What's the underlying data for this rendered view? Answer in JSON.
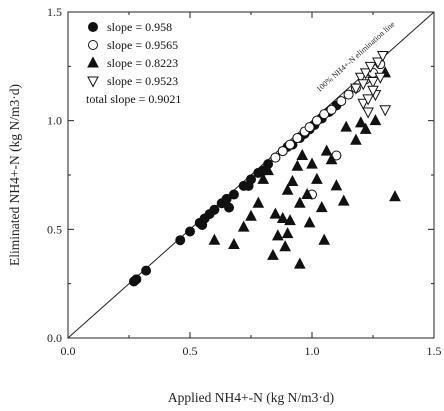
{
  "chart_data": {
    "type": "scatter",
    "xlabel": "Applied NH4+-N (kg N/m3·d)",
    "ylabel": "Eliminated NH4+-N (kg N/m3·d)",
    "xlim": [
      0.0,
      1.5
    ],
    "ylim": [
      0.0,
      1.5
    ],
    "xticks": [
      "0.0",
      "0.5",
      "1.0",
      "1.5"
    ],
    "yticks": [
      "0.0",
      "0.5",
      "1.0",
      "1.5"
    ],
    "grid": false,
    "legend_position": "top-left",
    "reference_line": {
      "label": "100% NH4+-N elimination line",
      "x": [
        0.0,
        1.5
      ],
      "y": [
        0.0,
        1.5
      ]
    },
    "total_slope_label": "total slope = 0.9021",
    "series": [
      {
        "name": "slope = 0.958",
        "marker": "filled-circle",
        "x": [
          0.27,
          0.28,
          0.32,
          0.46,
          0.5,
          0.54,
          0.56,
          0.58,
          0.6,
          0.63,
          0.65,
          0.68,
          0.72,
          0.75,
          0.78,
          0.8,
          0.82,
          0.85,
          0.88,
          0.9,
          0.92,
          0.95,
          0.97,
          0.99,
          1.01,
          1.04,
          1.07,
          1.1,
          0.55,
          0.66,
          0.74
        ],
        "y": [
          0.26,
          0.27,
          0.31,
          0.45,
          0.49,
          0.53,
          0.55,
          0.57,
          0.59,
          0.62,
          0.64,
          0.66,
          0.7,
          0.73,
          0.76,
          0.77,
          0.8,
          0.83,
          0.86,
          0.88,
          0.89,
          0.92,
          0.94,
          0.96,
          0.98,
          1.01,
          1.04,
          1.07,
          0.52,
          0.6,
          0.7
        ]
      },
      {
        "name": "slope = 0.9565",
        "marker": "open-circle",
        "x": [
          0.85,
          0.88,
          0.91,
          0.94,
          0.97,
          0.99,
          1.02,
          1.05,
          1.08,
          1.12,
          1.15,
          1.18,
          1.22,
          1.25,
          1.28,
          1.0,
          1.1
        ],
        "y": [
          0.83,
          0.86,
          0.89,
          0.92,
          0.95,
          0.97,
          1.0,
          1.03,
          1.05,
          1.09,
          1.12,
          1.15,
          1.19,
          1.22,
          1.26,
          0.66,
          0.84
        ]
      },
      {
        "name": "slope = 0.8223",
        "marker": "filled-triangle",
        "x": [
          0.6,
          0.68,
          0.72,
          0.75,
          0.78,
          0.8,
          0.82,
          0.84,
          0.85,
          0.86,
          0.88,
          0.89,
          0.9,
          0.91,
          0.92,
          0.94,
          0.95,
          0.96,
          0.98,
          1.0,
          1.02,
          1.04,
          1.06,
          1.08,
          1.1,
          1.14,
          1.18,
          1.22,
          1.26,
          1.3,
          1.34,
          0.95,
          0.99,
          1.05,
          1.13,
          1.2,
          0.9
        ],
        "y": [
          0.45,
          0.43,
          0.51,
          0.56,
          0.62,
          0.73,
          0.77,
          0.38,
          0.57,
          0.47,
          0.55,
          0.42,
          0.68,
          0.54,
          0.72,
          0.79,
          0.62,
          0.84,
          0.66,
          0.8,
          0.73,
          0.6,
          0.86,
          0.82,
          0.7,
          0.97,
          0.91,
          0.96,
          1.0,
          1.22,
          0.65,
          0.34,
          0.53,
          0.45,
          0.63,
          0.99,
          0.48
        ]
      },
      {
        "name": "slope = 0.9523",
        "marker": "open-triangle-down",
        "x": [
          1.18,
          1.2,
          1.21,
          1.22,
          1.23,
          1.24,
          1.25,
          1.26,
          1.27,
          1.28,
          1.29,
          1.3,
          1.21,
          1.23,
          1.25
        ],
        "y": [
          1.15,
          1.2,
          1.08,
          1.22,
          1.1,
          1.25,
          1.18,
          1.12,
          1.27,
          1.2,
          1.3,
          1.05,
          1.17,
          1.04,
          1.14
        ]
      }
    ]
  }
}
